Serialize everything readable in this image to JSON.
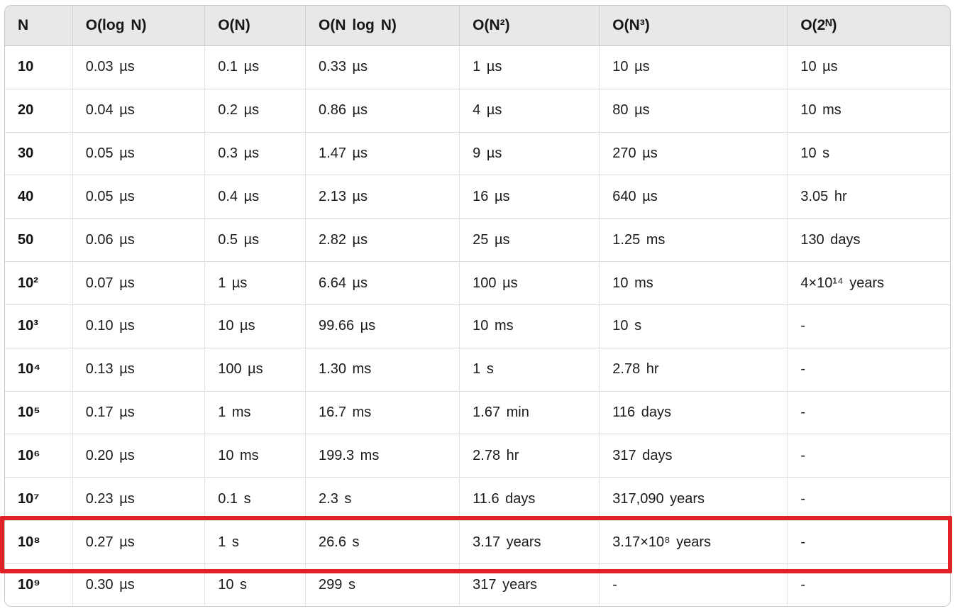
{
  "chart_data": {
    "type": "table",
    "columns": [
      "N",
      "O(log N)",
      "O(N)",
      "O(N log N)",
      "O(N²)",
      "O(N³)",
      "O(2ᴺ)"
    ],
    "rows": [
      [
        "10",
        "0.03 µs",
        "0.1 µs",
        "0.33 µs",
        "1 µs",
        "10 µs",
        "10 µs"
      ],
      [
        "20",
        "0.04 µs",
        "0.2 µs",
        "0.86 µs",
        "4 µs",
        "80 µs",
        "10 ms"
      ],
      [
        "30",
        "0.05 µs",
        "0.3 µs",
        "1.47 µs",
        "9 µs",
        "270 µs",
        "10 s"
      ],
      [
        "40",
        "0.05 µs",
        "0.4 µs",
        "2.13 µs",
        "16 µs",
        "640 µs",
        "3.05 hr"
      ],
      [
        "50",
        "0.06 µs",
        "0.5 µs",
        "2.82 µs",
        "25 µs",
        "1.25 ms",
        "130 days"
      ],
      [
        "10²",
        "0.07 µs",
        "1 µs",
        "6.64 µs",
        "100 µs",
        "10 ms",
        "4×10¹⁴ years"
      ],
      [
        "10³",
        "0.10 µs",
        "10 µs",
        "99.66 µs",
        "10 ms",
        "10 s",
        "-"
      ],
      [
        "10⁴",
        "0.13 µs",
        "100 µs",
        "1.30 ms",
        "1 s",
        "2.78 hr",
        "-"
      ],
      [
        "10⁵",
        "0.17 µs",
        "1 ms",
        "16.7 ms",
        "1.67 min",
        "116 days",
        "-"
      ],
      [
        "10⁶",
        "0.20 µs",
        "10 ms",
        "199.3 ms",
        "2.78 hr",
        "317 days",
        "-"
      ],
      [
        "10⁷",
        "0.23 µs",
        "0.1 s",
        "2.3 s",
        "11.6 days",
        "317,090 years",
        "-"
      ],
      [
        "10⁸",
        "0.27 µs",
        "1 s",
        "26.6 s",
        "3.17 years",
        "3.17×10⁸ years",
        "-"
      ],
      [
        "10⁹",
        "0.30 µs",
        "10 s",
        "299 s",
        "317 years",
        "-",
        "-"
      ]
    ],
    "highlighted_row_index": 11,
    "highlighted_row_label": "10⁸",
    "highlight_color": "#e02128"
  },
  "style_colors": {
    "header_background": "#e9e8e6",
    "card_border": "#c6c6c6",
    "row_divider": "#dddddd",
    "text": "#1b1b1b"
  }
}
